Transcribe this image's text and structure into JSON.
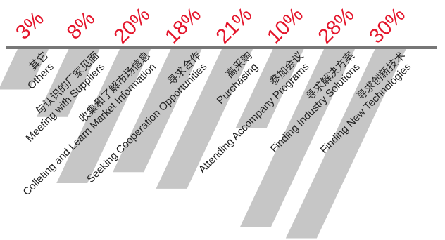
{
  "chart_data": {
    "type": "bar",
    "orientation": "downward, slanted",
    "unit": "%",
    "categories": [
      {
        "cn": "其它",
        "en": "Others"
      },
      {
        "cn": "与认识的厂家见面",
        "en": "Meeting with Suppliers"
      },
      {
        "cn": "收集和了解市场信息",
        "en": "Colleting and Learn Market Information"
      },
      {
        "cn": "寻求合作",
        "en": "Seeking Cooperation Opportunities"
      },
      {
        "cn": "高采购",
        "en": "Purchasing"
      },
      {
        "cn": "参加会议",
        "en": "Attending Accompany Programs"
      },
      {
        "cn": "寻求解决方案",
        "en": "Finding Industry Solutions"
      },
      {
        "cn": "寻求创新技术",
        "en": "Finding New Technologies"
      }
    ],
    "values": [
      3,
      8,
      20,
      18,
      21,
      10,
      28,
      30
    ],
    "value_labels": [
      "3%",
      "8%",
      "20%",
      "18%",
      "21%",
      "10%",
      "28%",
      "30%"
    ],
    "colors": {
      "value_label": "#e4152b",
      "bar": "#c6c6c6",
      "axis": "#777777"
    }
  }
}
